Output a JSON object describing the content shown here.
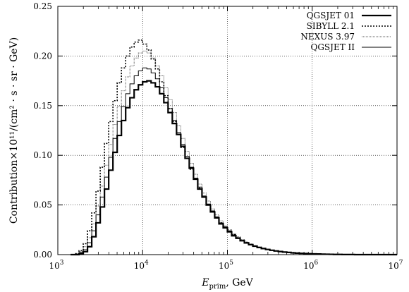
{
  "chart_data": {
    "type": "line",
    "subtype": "step-histogram",
    "xscale": "log",
    "xlim": [
      1000,
      10000000
    ],
    "ylim": [
      0,
      0.25
    ],
    "grid": true,
    "legend_position": "top-right",
    "xlabel": {
      "symbol": "E",
      "subscript": "prim",
      "unit": ", GeV"
    },
    "ylabel": "Contribution×10¹¹/(cm² · s · sr · GeV)",
    "x_ticks": [
      {
        "value": 1000,
        "base": "10",
        "exp": "3"
      },
      {
        "value": 10000,
        "base": "10",
        "exp": "4"
      },
      {
        "value": 100000,
        "base": "10",
        "exp": "5"
      },
      {
        "value": 1000000,
        "base": "10",
        "exp": "6"
      },
      {
        "value": 10000000,
        "base": "10",
        "exp": "7"
      }
    ],
    "y_ticks": [
      {
        "value": 0,
        "label": "0.00"
      },
      {
        "value": 0.05,
        "label": "0.05"
      },
      {
        "value": 0.1,
        "label": "0.10"
      },
      {
        "value": 0.15,
        "label": "0.15"
      },
      {
        "value": 0.2,
        "label": "0.20"
      },
      {
        "value": 0.25,
        "label": "0.25"
      }
    ],
    "bins_per_decade": 20,
    "bin_start_log10": 3.15,
    "series": [
      {
        "name": "QGSJET 01",
        "style": "solid-thick",
        "color": "#000000",
        "values": [
          0.0,
          0.0,
          0.001,
          0.003,
          0.008,
          0.018,
          0.032,
          0.048,
          0.066,
          0.085,
          0.103,
          0.12,
          0.135,
          0.148,
          0.158,
          0.166,
          0.171,
          0.174,
          0.175,
          0.173,
          0.169,
          0.162,
          0.153,
          0.143,
          0.132,
          0.121,
          0.109,
          0.097,
          0.087,
          0.076,
          0.066,
          0.058,
          0.05,
          0.043,
          0.037,
          0.031,
          0.027,
          0.023,
          0.019,
          0.0165,
          0.014,
          0.0118,
          0.01,
          0.0085,
          0.0072,
          0.0061,
          0.0052,
          0.0044,
          0.0037,
          0.0031,
          0.0026,
          0.0022,
          0.0018,
          0.0015,
          0.0013,
          0.0011,
          0.0009,
          0.0007,
          0.0006,
          0.0005,
          0.0004,
          0.0003,
          0.0002,
          0.0002,
          0.0001,
          0.0001,
          0.0001,
          0.0,
          0.0,
          0.0,
          0.0,
          0.0,
          0.0,
          0.0,
          0.0,
          0.0,
          0.0
        ]
      },
      {
        "name": "SIBYLL 2.1",
        "style": "dotted",
        "color": "#000000",
        "values": [
          0.0,
          0.001,
          0.004,
          0.011,
          0.024,
          0.042,
          0.064,
          0.088,
          0.112,
          0.134,
          0.155,
          0.173,
          0.188,
          0.2,
          0.209,
          0.214,
          0.216,
          0.212,
          0.206,
          0.197,
          0.187,
          0.174,
          0.16,
          0.147,
          0.134,
          0.121,
          0.108,
          0.097,
          0.086,
          0.076,
          0.067,
          0.058,
          0.05,
          0.043,
          0.037,
          0.032,
          0.027,
          0.023,
          0.02,
          0.017,
          0.0145,
          0.0122,
          0.0103,
          0.0087,
          0.0073,
          0.0062,
          0.0052,
          0.0044,
          0.0037,
          0.0031,
          0.0026,
          0.0022,
          0.0018,
          0.0015,
          0.0012,
          0.001,
          0.0008,
          0.0007,
          0.0006,
          0.0005,
          0.0004,
          0.0003,
          0.0002,
          0.0002,
          0.0001,
          0.0001,
          0.0001,
          0.0,
          0.0,
          0.0,
          0.0,
          0.0,
          0.0,
          0.0,
          0.0,
          0.0,
          0.0
        ]
      },
      {
        "name": "NEXUS 3.97",
        "style": "dotted-fine",
        "color": "#555555",
        "values": [
          0.0,
          0.001,
          0.003,
          0.008,
          0.017,
          0.031,
          0.049,
          0.069,
          0.09,
          0.111,
          0.131,
          0.149,
          0.165,
          0.179,
          0.19,
          0.198,
          0.203,
          0.205,
          0.203,
          0.198,
          0.19,
          0.18,
          0.168,
          0.156,
          0.143,
          0.13,
          0.117,
          0.104,
          0.092,
          0.081,
          0.071,
          0.062,
          0.054,
          0.046,
          0.04,
          0.034,
          0.029,
          0.025,
          0.021,
          0.018,
          0.0152,
          0.0128,
          0.0108,
          0.0091,
          0.0077,
          0.0065,
          0.0054,
          0.0046,
          0.0038,
          0.0032,
          0.0027,
          0.0022,
          0.0019,
          0.0016,
          0.0013,
          0.0011,
          0.0009,
          0.0007,
          0.0006,
          0.0005,
          0.0004,
          0.0003,
          0.0002,
          0.0002,
          0.0001,
          0.0001,
          0.0001,
          0.0,
          0.0,
          0.0,
          0.0,
          0.0,
          0.0,
          0.0,
          0.0,
          0.0,
          0.0
        ]
      },
      {
        "name": "QGSJET II",
        "style": "solid-thin",
        "color": "#000000",
        "values": [
          0.0,
          0.0,
          0.002,
          0.005,
          0.012,
          0.024,
          0.04,
          0.058,
          0.078,
          0.098,
          0.117,
          0.134,
          0.149,
          0.162,
          0.172,
          0.18,
          0.185,
          0.188,
          0.187,
          0.183,
          0.177,
          0.168,
          0.158,
          0.147,
          0.135,
          0.123,
          0.111,
          0.099,
          0.088,
          0.077,
          0.068,
          0.059,
          0.051,
          0.044,
          0.038,
          0.032,
          0.028,
          0.024,
          0.02,
          0.017,
          0.0143,
          0.012,
          0.0101,
          0.0085,
          0.0072,
          0.0061,
          0.0052,
          0.0044,
          0.0037,
          0.0031,
          0.0026,
          0.0022,
          0.0018,
          0.0015,
          0.0013,
          0.0011,
          0.0009,
          0.0007,
          0.0006,
          0.0005,
          0.0004,
          0.0003,
          0.0002,
          0.0002,
          0.0001,
          0.0001,
          0.0001,
          0.0,
          0.0,
          0.0,
          0.0,
          0.0,
          0.0,
          0.0,
          0.0,
          0.0,
          0.0
        ]
      }
    ]
  }
}
